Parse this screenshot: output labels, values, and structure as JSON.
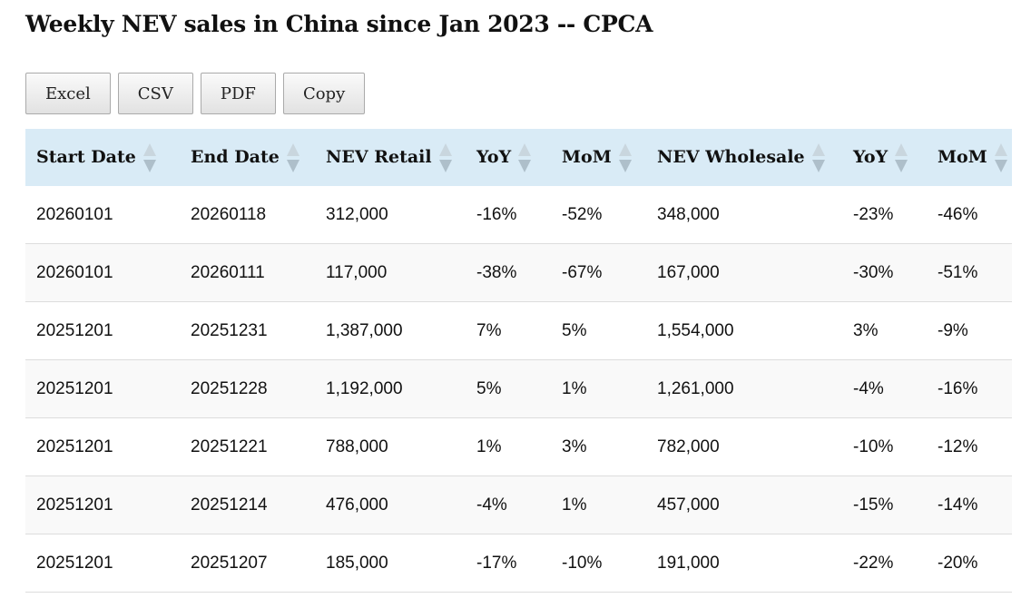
{
  "title": "Weekly NEV sales in China since Jan 2023 -- CPCA",
  "buttons": [
    "Excel",
    "CSV",
    "PDF",
    "Copy"
  ],
  "columns": [
    "Start Date",
    "End Date",
    "NEV Retail",
    "YoY",
    "MoM",
    "NEV Wholesale",
    "YoY",
    "MoM"
  ],
  "rows": [
    [
      "20260101",
      "20260118",
      "312,000",
      "-16%",
      "-52%",
      "348,000",
      "-23%",
      "-46%"
    ],
    [
      "20260101",
      "20260111",
      "117,000",
      "-38%",
      "-67%",
      "167,000",
      "-30%",
      "-51%"
    ],
    [
      "20251201",
      "20251231",
      "1,387,000",
      "7%",
      "5%",
      "1,554,000",
      "3%",
      "-9%"
    ],
    [
      "20251201",
      "20251228",
      "1,192,000",
      "5%",
      "1%",
      "1,261,000",
      "-4%",
      "-16%"
    ],
    [
      "20251201",
      "20251221",
      "788,000",
      "1%",
      "3%",
      "782,000",
      "-10%",
      "-12%"
    ],
    [
      "20251201",
      "20251214",
      "476,000",
      "-4%",
      "1%",
      "457,000",
      "-15%",
      "-14%"
    ],
    [
      "20251201",
      "20251207",
      "185,000",
      "-17%",
      "-10%",
      "191,000",
      "-22%",
      "-20%"
    ]
  ],
  "colors": {
    "header_bg": "#d9ebf6",
    "stripe": "#f9f9f9"
  }
}
